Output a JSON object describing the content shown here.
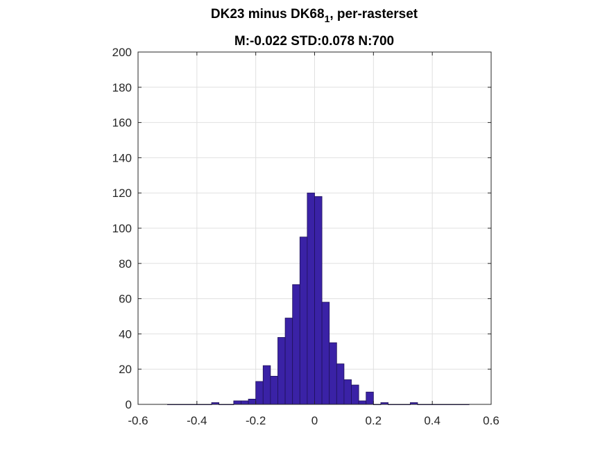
{
  "chart_data": {
    "type": "bar",
    "title_main": "DK23 minus DK68",
    "title_subscript": "1",
    "title_suffix": ", per-rasterset",
    "subtitle": "M:-0.022 STD:0.078 N:700",
    "xlim": [
      -0.6,
      0.6
    ],
    "ylim": [
      0,
      200
    ],
    "xticks": [
      "-0.6",
      "-0.4",
      "-0.2",
      "0",
      "0.2",
      "0.4",
      "0.6"
    ],
    "yticks": [
      "0",
      "20",
      "40",
      "60",
      "80",
      "100",
      "120",
      "140",
      "160",
      "180",
      "200"
    ],
    "grid": true,
    "bin_width": 0.025,
    "bin_edges_start": -0.5,
    "bin_centers": [
      -0.4875,
      -0.4625,
      -0.4375,
      -0.4125,
      -0.3875,
      -0.3625,
      -0.3375,
      -0.3125,
      -0.2875,
      -0.2625,
      -0.2375,
      -0.2125,
      -0.1875,
      -0.1625,
      -0.1375,
      -0.1125,
      -0.0875,
      -0.0625,
      -0.0375,
      -0.0125,
      0.0125,
      0.0375,
      0.0625,
      0.0875,
      0.1125,
      0.1375,
      0.1625,
      0.1875,
      0.2125,
      0.2375,
      0.2625,
      0.2875,
      0.3125,
      0.3375,
      0.3625,
      0.3875,
      0.4125,
      0.4375,
      0.4625,
      0.4875,
      0.5125
    ],
    "values": [
      0,
      0,
      0,
      0,
      0,
      0,
      1,
      0,
      0,
      2,
      2,
      3,
      13,
      22,
      16,
      38,
      49,
      68,
      95,
      120,
      118,
      58,
      35,
      23,
      14,
      11,
      2,
      7,
      0,
      1,
      0,
      0,
      0,
      1,
      0,
      0,
      0,
      0,
      0,
      0,
      0
    ],
    "bar_color": "#3a22a6",
    "bar_edge_color": "#1f1259",
    "grid_color": "#e0e0e0",
    "axis_color": "#262626"
  }
}
